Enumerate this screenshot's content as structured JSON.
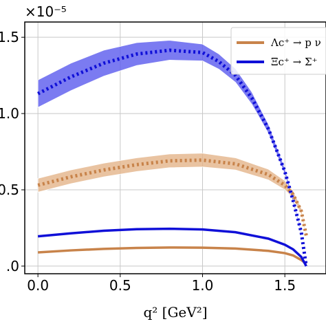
{
  "chart_data": {
    "type": "line",
    "xlabel": "q² [GeV²]",
    "ylabel": "",
    "scale_multiplier": "×10⁻⁵",
    "xlim": [
      -0.08,
      1.75
    ],
    "ylim": [
      -0.05,
      1.6
    ],
    "x_ticks": [
      "0.0",
      "0.5",
      "1.0",
      "1.5"
    ],
    "y_ticks": [
      ".0",
      "0.5",
      "1.0",
      "1.5"
    ],
    "grid": true,
    "legend_position": "top-right",
    "colors": {
      "orange": "#c8834a",
      "blue": "#1010d8",
      "band_orange": "#e3b48a",
      "band_blue": "#5a5aee"
    },
    "series": [
      {
        "name": "Λc⁺ → p ν",
        "color": "#c8834a",
        "solid_x": [
          0.0,
          0.2,
          0.4,
          0.6,
          0.8,
          1.0,
          1.2,
          1.4,
          1.5,
          1.55,
          1.6,
          1.63
        ],
        "solid_y": [
          0.09,
          0.103,
          0.113,
          0.119,
          0.122,
          0.121,
          0.115,
          0.1,
          0.085,
          0.07,
          0.04,
          0.015
        ],
        "band_x": [
          0.0,
          0.2,
          0.4,
          0.6,
          0.8,
          1.0,
          1.2,
          1.4,
          1.5,
          1.55,
          1.6,
          1.63
        ],
        "band_y": [
          0.53,
          0.585,
          0.63,
          0.665,
          0.69,
          0.695,
          0.67,
          0.6,
          0.53,
          0.47,
          0.36,
          0.2
        ],
        "band_halfwidth": [
          0.045,
          0.045,
          0.045,
          0.045,
          0.045,
          0.045,
          0.04,
          0.035,
          0.03,
          0.025,
          0.02,
          0.01
        ]
      },
      {
        "name": "Ξc⁺ → Σ⁺",
        "color": "#1010d8",
        "solid_x": [
          0.0,
          0.2,
          0.4,
          0.6,
          0.8,
          1.0,
          1.2,
          1.4,
          1.5,
          1.55,
          1.6,
          1.63
        ],
        "solid_y": [
          0.195,
          0.215,
          0.232,
          0.242,
          0.245,
          0.24,
          0.222,
          0.18,
          0.14,
          0.11,
          0.06,
          0.0
        ],
        "band_x": [
          0.0,
          0.2,
          0.4,
          0.6,
          0.8,
          1.0,
          1.1,
          1.2,
          1.3,
          1.4,
          1.5,
          1.55,
          1.6,
          1.63
        ],
        "band_y": [
          1.13,
          1.24,
          1.33,
          1.39,
          1.415,
          1.4,
          1.34,
          1.25,
          1.1,
          0.9,
          0.62,
          0.43,
          0.22,
          0.0
        ],
        "band_halfwidth": [
          0.09,
          0.09,
          0.085,
          0.075,
          0.065,
          0.055,
          0.05,
          0.045,
          0.04,
          0.03,
          0.02,
          0.015,
          0.01,
          0.005
        ]
      }
    ]
  }
}
